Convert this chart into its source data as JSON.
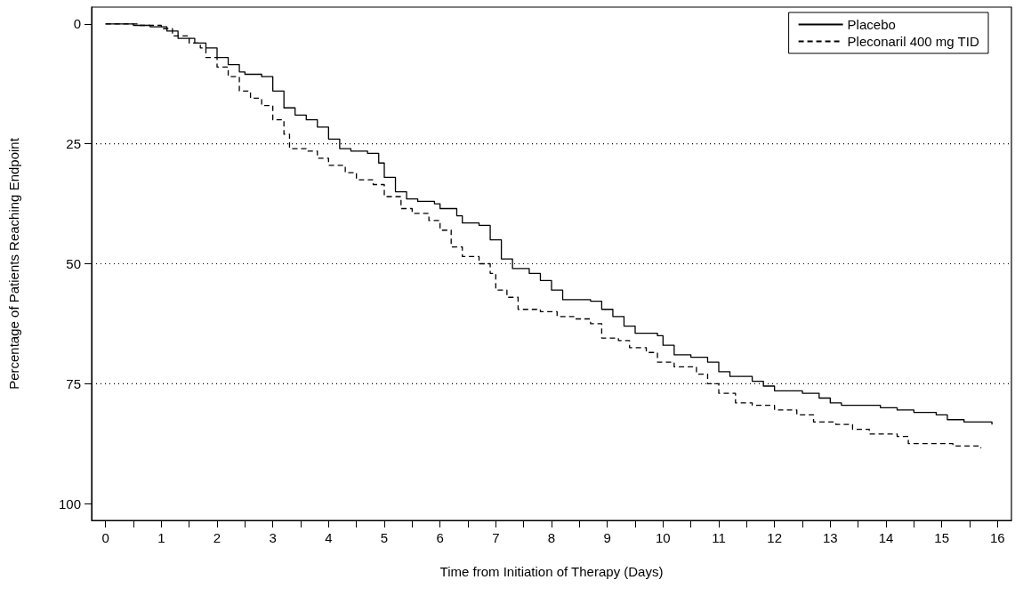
{
  "chart_data": {
    "type": "step",
    "xlabel": "Time from Initiation of Therapy (Days)",
    "ylabel": "Percentage of Patients Reaching Endpoint",
    "xlim": [
      -0.25,
      16.25
    ],
    "ylim": [
      103.5,
      -3.5
    ],
    "xticks": [
      0,
      {
        "value": 0.5,
        "label": null
      },
      1,
      {
        "value": 1.5,
        "label": null
      },
      2,
      {
        "value": 2.5,
        "label": null
      },
      3,
      {
        "value": 3.5,
        "label": null
      },
      4,
      {
        "value": 4.5,
        "label": null
      },
      5,
      {
        "value": 5.5,
        "label": null
      },
      6,
      {
        "value": 6.5,
        "label": null
      },
      7,
      {
        "value": 7.5,
        "label": null
      },
      8,
      {
        "value": 8.5,
        "label": null
      },
      9,
      {
        "value": 9.5,
        "label": null
      },
      10,
      {
        "value": 10.5,
        "label": null
      },
      11,
      {
        "value": 11.5,
        "label": null
      },
      12,
      {
        "value": 12.5,
        "label": null
      },
      13,
      {
        "value": 13.5,
        "label": null
      },
      14,
      {
        "value": 14.5,
        "label": null
      },
      15,
      {
        "value": 15.5,
        "label": null
      },
      16
    ],
    "yticks": [
      0,
      25,
      50,
      75,
      100
    ],
    "legend": "top right",
    "marker": "none",
    "grid": false,
    "ref_lines": [
      {
        "axis": "y",
        "value": 25,
        "line_style": "dotted",
        "color": "#000000"
      },
      {
        "axis": "y",
        "value": 50,
        "line_style": "dotted",
        "color": "#000000"
      },
      {
        "axis": "y",
        "value": 75,
        "line_style": "dotted",
        "color": "#000000"
      }
    ],
    "series": [
      {
        "name": "Placebo",
        "color": "#000000",
        "line_style": "solid",
        "x": [
          0,
          0.5,
          0.8,
          1.1,
          1.3,
          1.6,
          1.8,
          2.0,
          2.2,
          2.4,
          2.5,
          2.8,
          3.0,
          3.2,
          3.4,
          3.6,
          3.8,
          4.0,
          4.2,
          4.4,
          4.7,
          4.9,
          5.0,
          5.2,
          5.4,
          5.6,
          5.9,
          6.0,
          6.3,
          6.4,
          6.7,
          6.9,
          7.1,
          7.3,
          7.6,
          7.8,
          8.0,
          8.2,
          8.7,
          8.9,
          9.1,
          9.3,
          9.5,
          9.9,
          10.0,
          10.2,
          10.5,
          10.8,
          11.0,
          11.2,
          11.6,
          11.8,
          12.0,
          12.5,
          12.8,
          13.0,
          13.2,
          13.9,
          14.2,
          14.5,
          14.9,
          15.1,
          15.4,
          15.9
        ],
        "values": [
          0,
          0.3,
          0.6,
          1.5,
          3,
          4,
          5,
          7,
          8.5,
          10,
          10.5,
          11,
          14,
          17.5,
          19,
          20,
          21.5,
          24,
          26,
          26.5,
          27,
          29,
          32,
          35,
          36.5,
          37,
          37.5,
          38.5,
          40,
          41.5,
          42,
          45,
          49,
          51,
          52,
          53.5,
          55.5,
          57.5,
          57.8,
          59.5,
          61,
          63,
          64.5,
          65,
          67,
          69,
          69.5,
          70.5,
          72.5,
          73.5,
          74.5,
          75.5,
          76.5,
          77,
          78,
          79,
          79.5,
          80,
          80.5,
          81,
          81.5,
          82.5,
          83,
          83.5
        ]
      },
      {
        "name": "Pleconaril 400 mg TID",
        "color": "#000000",
        "line_style": "dashed",
        "x": [
          0,
          0.6,
          1.0,
          1.2,
          1.5,
          1.7,
          1.8,
          2.0,
          2.2,
          2.4,
          2.6,
          2.8,
          3.0,
          3.2,
          3.3,
          3.6,
          3.8,
          4.0,
          4.3,
          4.5,
          4.8,
          5.0,
          5.3,
          5.5,
          5.8,
          6.0,
          6.2,
          6.4,
          6.7,
          6.9,
          7.0,
          7.2,
          7.4,
          7.8,
          8.1,
          8.4,
          8.7,
          8.9,
          9.2,
          9.4,
          9.7,
          9.9,
          10.2,
          10.6,
          10.8,
          11.0,
          11.3,
          11.6,
          12.0,
          12.4,
          12.7,
          13.1,
          13.4,
          13.7,
          14.2,
          14.4,
          14.8,
          15.2,
          15.7
        ],
        "values": [
          0,
          0.3,
          1,
          2.5,
          4,
          5,
          7,
          9,
          11,
          14,
          15.5,
          17,
          20,
          23,
          26,
          26.5,
          28,
          29.5,
          31,
          32.5,
          33.5,
          36,
          38.5,
          39.5,
          41,
          43,
          46.5,
          48.5,
          50,
          52,
          55.5,
          57,
          59.5,
          60,
          61,
          61.5,
          62.5,
          65.5,
          66,
          67.5,
          68.5,
          70.5,
          71.5,
          73,
          75,
          77,
          79,
          79.5,
          80.5,
          81.5,
          83,
          83.5,
          84.5,
          85.5,
          86,
          87.5,
          87.5,
          88,
          88.5
        ]
      }
    ]
  }
}
